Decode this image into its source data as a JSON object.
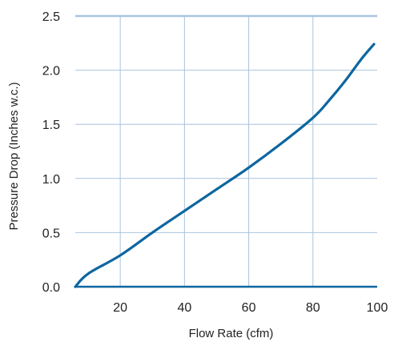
{
  "chart_data": {
    "type": "line",
    "title": "",
    "xlabel": "Flow Rate (cfm)",
    "ylabel": "Pressure Drop (Inches w.c.)",
    "xlim": [
      6,
      100
    ],
    "ylim": [
      0,
      2.5
    ],
    "x_ticks": [
      20,
      40,
      60,
      80,
      100
    ],
    "x_tick_labels": [
      "20",
      "40",
      "60",
      "80",
      "100"
    ],
    "y_ticks": [
      0.0,
      0.5,
      1.0,
      1.5,
      2.0,
      2.5
    ],
    "y_tick_labels": [
      "0.0",
      "0.5",
      "1.0",
      "1.5",
      "2.0",
      "2.5"
    ],
    "grid": true,
    "colors": {
      "line": "#0d66a0",
      "grid": "#a9c4df",
      "axis": "#0d66a0",
      "top_border": "#a9c4df",
      "text": "#222222"
    },
    "series": [
      {
        "x": [
          6,
          10,
          20,
          30,
          40,
          50,
          60,
          70,
          80,
          85,
          90,
          95,
          99
        ],
        "y": [
          0.0,
          0.12,
          0.29,
          0.5,
          0.7,
          0.9,
          1.1,
          1.32,
          1.56,
          1.72,
          1.9,
          2.1,
          2.24
        ]
      }
    ]
  }
}
